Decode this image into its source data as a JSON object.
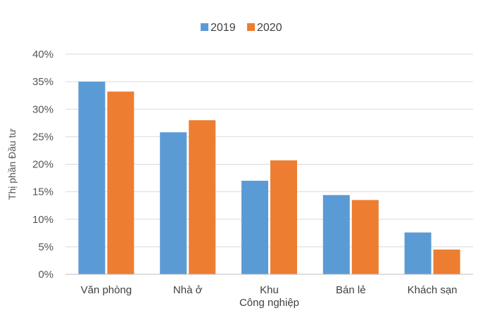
{
  "chart_data": {
    "type": "bar",
    "ylabel": "Thị phần Đầu tư",
    "ylim": [
      0,
      40
    ],
    "yticks": [
      "0%",
      "5%",
      "10%",
      "15%",
      "20%",
      "25%",
      "30%",
      "35%",
      "40%"
    ],
    "categories": [
      [
        "Văn phòng"
      ],
      [
        "Nhà ở"
      ],
      [
        "Khu",
        "Công nghiệp"
      ],
      [
        "Bán lẻ"
      ],
      [
        "Khách sạn"
      ]
    ],
    "series": [
      {
        "name": "2019",
        "color": "#5b9bd5",
        "values": [
          35.0,
          25.8,
          17.0,
          14.4,
          7.6
        ]
      },
      {
        "name": "2020",
        "color": "#ed7d31",
        "values": [
          33.2,
          28.0,
          20.7,
          13.5,
          4.5
        ]
      }
    ],
    "grid": true,
    "legend": "top-center"
  }
}
